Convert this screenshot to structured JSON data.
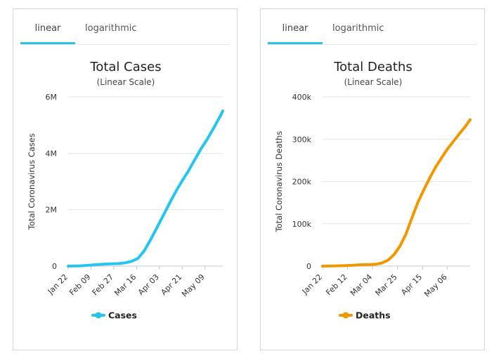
{
  "colors": {
    "cases": "#24c6f0",
    "deaths": "#f39700",
    "tab_accent": "#2bc3ea"
  },
  "charts": [
    {
      "tabs": [
        {
          "label": "linear",
          "active": true
        },
        {
          "label": "logarithmic",
          "active": false
        }
      ],
      "chart_data": {
        "type": "line",
        "title": "Total Cases",
        "subtitle": "(Linear Scale)",
        "ylabel": "Total Coronavirus Cases",
        "xlabel": "",
        "ylim": [
          0,
          6000000
        ],
        "y_ticks": [
          0,
          2000000,
          4000000,
          6000000
        ],
        "y_tick_labels": [
          "0",
          "2M",
          "4M",
          "6M"
        ],
        "x_tick_labels": [
          "Jan 22",
          "Feb 09",
          "Feb 27",
          "Mar 16",
          "Apr 03",
          "Apr 21",
          "May 09"
        ],
        "x_tick_index": [
          0,
          18,
          36,
          54,
          72,
          90,
          108
        ],
        "x_count": 123,
        "series": [
          {
            "name": "Cases",
            "points": [
              [
                0,
                555
              ],
              [
                10,
                9800
              ],
              [
                20,
                43000
              ],
              [
                30,
                75000
              ],
              [
                40,
                89000
              ],
              [
                45,
                118000
              ],
              [
                50,
                170000
              ],
              [
                55,
                272000
              ],
              [
                60,
                540000
              ],
              [
                65,
                930000
              ],
              [
                70,
                1360000
              ],
              [
                75,
                1790000
              ],
              [
                80,
                2230000
              ],
              [
                85,
                2650000
              ],
              [
                90,
                3030000
              ],
              [
                95,
                3380000
              ],
              [
                100,
                3780000
              ],
              [
                105,
                4170000
              ],
              [
                110,
                4520000
              ],
              [
                115,
                4910000
              ],
              [
                120,
                5320000
              ],
              [
                122,
                5500000
              ]
            ]
          }
        ],
        "legend": "bottom-center"
      }
    },
    {
      "tabs": [
        {
          "label": "linear",
          "active": true
        },
        {
          "label": "logarithmic",
          "active": false
        }
      ],
      "chart_data": {
        "type": "line",
        "title": "Total Deaths",
        "subtitle": "(Linear Scale)",
        "ylabel": "Total Coronavirus Deaths",
        "xlabel": "",
        "ylim": [
          0,
          400000
        ],
        "y_ticks": [
          0,
          100000,
          200000,
          300000,
          400000
        ],
        "y_tick_labels": [
          "0",
          "100k",
          "200k",
          "300k",
          "400k"
        ],
        "x_tick_labels": [
          "Jan 22",
          "Feb 12",
          "Mar 04",
          "Mar 25",
          "Apr 15",
          "May 06"
        ],
        "x_tick_index": [
          0,
          21,
          42,
          63,
          84,
          105
        ],
        "x_count": 125,
        "series": [
          {
            "name": "Deaths",
            "points": [
              [
                0,
                17
              ],
              [
                10,
                400
              ],
              [
                20,
                1300
              ],
              [
                30,
                2900
              ],
              [
                40,
                3600
              ],
              [
                45,
                4500
              ],
              [
                50,
                7500
              ],
              [
                55,
                14000
              ],
              [
                60,
                27000
              ],
              [
                65,
                47000
              ],
              [
                70,
                75000
              ],
              [
                75,
                113000
              ],
              [
                80,
                150000
              ],
              [
                85,
                180000
              ],
              [
                90,
                208000
              ],
              [
                95,
                234000
              ],
              [
                100,
                256000
              ],
              [
                105,
                277000
              ],
              [
                110,
                295000
              ],
              [
                115,
                313000
              ],
              [
                120,
                330000
              ],
              [
                124,
                346000
              ]
            ]
          }
        ],
        "legend": "bottom-center"
      }
    }
  ]
}
